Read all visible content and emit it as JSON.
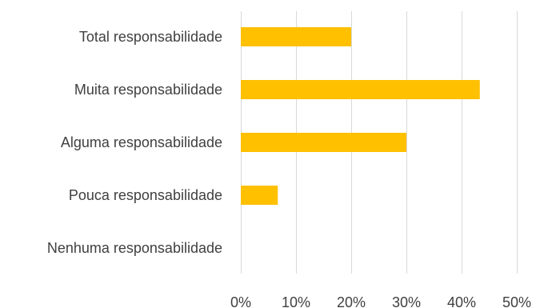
{
  "chart_data": {
    "type": "bar",
    "orientation": "horizontal",
    "categories": [
      "Total responsabilidade",
      "Muita responsabilidade",
      "Alguma responsabilidade",
      "Pouca responsabilidade",
      "Nenhuma responsabilidade"
    ],
    "values": [
      20,
      43.3,
      30,
      6.7,
      0
    ],
    "xlim": [
      0,
      50
    ],
    "xticks": [
      0,
      10,
      20,
      30,
      40,
      50
    ],
    "tick_labels": [
      "0%",
      "10%",
      "20%",
      "30%",
      "40%",
      "50%"
    ],
    "grid": true,
    "legend": "none",
    "bar_color": "#FFC000",
    "grid_color": "#D9D9D9",
    "text_color": "#404040"
  }
}
